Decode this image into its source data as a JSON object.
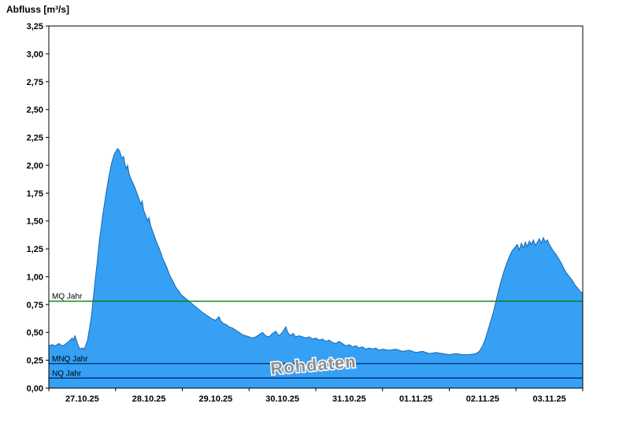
{
  "title": "Abfluss [m³/s]",
  "colors": {
    "area_fill": "#36A0F4",
    "area_stroke": "#1667B0",
    "mq_line": "#007F00",
    "mnq_line": "#00337F",
    "nq_line": "#00337F",
    "axis": "#000000",
    "watermark": "#8F8F8F"
  },
  "chart_data": {
    "type": "area",
    "title": "Abfluss [m³/s]",
    "ylabel": "Abfluss [m³/s]",
    "xlabel": "",
    "grid": false,
    "legend": "none",
    "watermark": "Rohdaten",
    "ylim": [
      0,
      3.25
    ],
    "y_tick_step": 0.25,
    "y_tick_labels": [
      "0,00",
      "0,25",
      "0,50",
      "0,75",
      "1,00",
      "1,25",
      "1,50",
      "1,75",
      "2,00",
      "2,25",
      "2,50",
      "2,75",
      "3,00",
      "3,25"
    ],
    "x_day_labels": [
      "27.10.25",
      "28.10.25",
      "29.10.25",
      "30.10.25",
      "31.10.25",
      "01.11.25",
      "02.11.25",
      "03.11.25"
    ],
    "x_domain_days": [
      0,
      8
    ],
    "reference_lines": [
      {
        "label": "MQ Jahr",
        "value": 0.78,
        "color": "#007F00"
      },
      {
        "label": "MNQ Jahr",
        "value": 0.22,
        "color": "#00337F"
      },
      {
        "label": "NQ Jahr",
        "value": 0.09,
        "color": "#00337F"
      }
    ],
    "series": [
      {
        "name": "Abfluss Rohdaten",
        "points": [
          [
            0.0,
            0.38
          ],
          [
            0.05,
            0.39
          ],
          [
            0.1,
            0.38
          ],
          [
            0.15,
            0.4
          ],
          [
            0.2,
            0.38
          ],
          [
            0.24,
            0.39
          ],
          [
            0.28,
            0.41
          ],
          [
            0.32,
            0.43
          ],
          [
            0.35,
            0.45
          ],
          [
            0.37,
            0.43
          ],
          [
            0.39,
            0.47
          ],
          [
            0.41,
            0.44
          ],
          [
            0.43,
            0.4
          ],
          [
            0.45,
            0.37
          ],
          [
            0.47,
            0.35
          ],
          [
            0.5,
            0.36
          ],
          [
            0.53,
            0.35
          ],
          [
            0.55,
            0.38
          ],
          [
            0.58,
            0.43
          ],
          [
            0.6,
            0.5
          ],
          [
            0.62,
            0.57
          ],
          [
            0.64,
            0.65
          ],
          [
            0.66,
            0.77
          ],
          [
            0.68,
            0.88
          ],
          [
            0.7,
            1.0
          ],
          [
            0.72,
            1.1
          ],
          [
            0.74,
            1.22
          ],
          [
            0.76,
            1.34
          ],
          [
            0.78,
            1.42
          ],
          [
            0.8,
            1.52
          ],
          [
            0.82,
            1.6
          ],
          [
            0.84,
            1.68
          ],
          [
            0.86,
            1.76
          ],
          [
            0.88,
            1.83
          ],
          [
            0.9,
            1.9
          ],
          [
            0.92,
            1.96
          ],
          [
            0.94,
            2.02
          ],
          [
            0.96,
            2.06
          ],
          [
            0.98,
            2.1
          ],
          [
            1.0,
            2.12
          ],
          [
            1.03,
            2.15
          ],
          [
            1.06,
            2.13
          ],
          [
            1.08,
            2.09
          ],
          [
            1.1,
            2.06
          ],
          [
            1.12,
            2.08
          ],
          [
            1.14,
            2.01
          ],
          [
            1.16,
            1.97
          ],
          [
            1.18,
            2.0
          ],
          [
            1.2,
            1.93
          ],
          [
            1.23,
            1.88
          ],
          [
            1.26,
            1.84
          ],
          [
            1.29,
            1.8
          ],
          [
            1.32,
            1.75
          ],
          [
            1.35,
            1.7
          ],
          [
            1.38,
            1.65
          ],
          [
            1.4,
            1.68
          ],
          [
            1.42,
            1.6
          ],
          [
            1.45,
            1.55
          ],
          [
            1.48,
            1.5
          ],
          [
            1.5,
            1.53
          ],
          [
            1.53,
            1.45
          ],
          [
            1.56,
            1.4
          ],
          [
            1.59,
            1.35
          ],
          [
            1.62,
            1.3
          ],
          [
            1.65,
            1.26
          ],
          [
            1.68,
            1.21
          ],
          [
            1.71,
            1.16
          ],
          [
            1.74,
            1.12
          ],
          [
            1.77,
            1.08
          ],
          [
            1.8,
            1.03
          ],
          [
            1.83,
            0.99
          ],
          [
            1.86,
            0.96
          ],
          [
            1.89,
            0.92
          ],
          [
            1.92,
            0.89
          ],
          [
            1.95,
            0.87
          ],
          [
            1.98,
            0.84
          ],
          [
            2.02,
            0.82
          ],
          [
            2.06,
            0.8
          ],
          [
            2.1,
            0.78
          ],
          [
            2.14,
            0.76
          ],
          [
            2.18,
            0.74
          ],
          [
            2.22,
            0.72
          ],
          [
            2.26,
            0.7
          ],
          [
            2.3,
            0.68
          ],
          [
            2.35,
            0.66
          ],
          [
            2.4,
            0.64
          ],
          [
            2.45,
            0.62
          ],
          [
            2.5,
            0.61
          ],
          [
            2.55,
            0.64
          ],
          [
            2.58,
            0.6
          ],
          [
            2.62,
            0.58
          ],
          [
            2.66,
            0.57
          ],
          [
            2.7,
            0.55
          ],
          [
            2.75,
            0.54
          ],
          [
            2.8,
            0.52
          ],
          [
            2.85,
            0.5
          ],
          [
            2.9,
            0.48
          ],
          [
            2.95,
            0.47
          ],
          [
            3.0,
            0.46
          ],
          [
            3.05,
            0.45
          ],
          [
            3.1,
            0.46
          ],
          [
            3.15,
            0.48
          ],
          [
            3.2,
            0.5
          ],
          [
            3.25,
            0.47
          ],
          [
            3.3,
            0.46
          ],
          [
            3.35,
            0.49
          ],
          [
            3.4,
            0.51
          ],
          [
            3.45,
            0.47
          ],
          [
            3.5,
            0.5
          ],
          [
            3.55,
            0.55
          ],
          [
            3.58,
            0.5
          ],
          [
            3.62,
            0.47
          ],
          [
            3.66,
            0.49
          ],
          [
            3.7,
            0.46
          ],
          [
            3.75,
            0.47
          ],
          [
            3.8,
            0.46
          ],
          [
            3.85,
            0.45
          ],
          [
            3.9,
            0.46
          ],
          [
            3.95,
            0.44
          ],
          [
            4.0,
            0.45
          ],
          [
            4.05,
            0.43
          ],
          [
            4.1,
            0.44
          ],
          [
            4.15,
            0.42
          ],
          [
            4.2,
            0.43
          ],
          [
            4.25,
            0.41
          ],
          [
            4.3,
            0.4
          ],
          [
            4.35,
            0.42
          ],
          [
            4.4,
            0.4
          ],
          [
            4.45,
            0.38
          ],
          [
            4.5,
            0.39
          ],
          [
            4.55,
            0.37
          ],
          [
            4.6,
            0.38
          ],
          [
            4.65,
            0.36
          ],
          [
            4.7,
            0.37
          ],
          [
            4.75,
            0.35
          ],
          [
            4.8,
            0.36
          ],
          [
            4.85,
            0.35
          ],
          [
            4.9,
            0.36
          ],
          [
            4.95,
            0.34
          ],
          [
            5.0,
            0.35
          ],
          [
            5.1,
            0.34
          ],
          [
            5.2,
            0.35
          ],
          [
            5.3,
            0.33
          ],
          [
            5.4,
            0.34
          ],
          [
            5.5,
            0.32
          ],
          [
            5.6,
            0.33
          ],
          [
            5.7,
            0.31
          ],
          [
            5.8,
            0.32
          ],
          [
            5.9,
            0.31
          ],
          [
            6.0,
            0.3
          ],
          [
            6.1,
            0.31
          ],
          [
            6.2,
            0.3
          ],
          [
            6.3,
            0.3
          ],
          [
            6.4,
            0.31
          ],
          [
            6.45,
            0.33
          ],
          [
            6.5,
            0.38
          ],
          [
            6.54,
            0.44
          ],
          [
            6.58,
            0.52
          ],
          [
            6.62,
            0.6
          ],
          [
            6.66,
            0.68
          ],
          [
            6.7,
            0.78
          ],
          [
            6.74,
            0.88
          ],
          [
            6.78,
            0.97
          ],
          [
            6.82,
            1.05
          ],
          [
            6.86,
            1.12
          ],
          [
            6.9,
            1.18
          ],
          [
            6.94,
            1.23
          ],
          [
            6.98,
            1.26
          ],
          [
            7.02,
            1.29
          ],
          [
            7.05,
            1.24
          ],
          [
            7.08,
            1.3
          ],
          [
            7.11,
            1.26
          ],
          [
            7.14,
            1.31
          ],
          [
            7.17,
            1.27
          ],
          [
            7.2,
            1.32
          ],
          [
            7.23,
            1.29
          ],
          [
            7.26,
            1.33
          ],
          [
            7.29,
            1.28
          ],
          [
            7.32,
            1.31
          ],
          [
            7.35,
            1.34
          ],
          [
            7.38,
            1.3
          ],
          [
            7.41,
            1.35
          ],
          [
            7.44,
            1.31
          ],
          [
            7.47,
            1.33
          ],
          [
            7.5,
            1.29
          ],
          [
            7.53,
            1.26
          ],
          [
            7.56,
            1.23
          ],
          [
            7.6,
            1.2
          ],
          [
            7.64,
            1.16
          ],
          [
            7.68,
            1.12
          ],
          [
            7.72,
            1.07
          ],
          [
            7.76,
            1.03
          ],
          [
            7.8,
            1.0
          ],
          [
            7.84,
            0.97
          ],
          [
            7.88,
            0.93
          ],
          [
            7.92,
            0.9
          ],
          [
            7.96,
            0.87
          ],
          [
            8.0,
            0.85
          ]
        ]
      }
    ]
  }
}
